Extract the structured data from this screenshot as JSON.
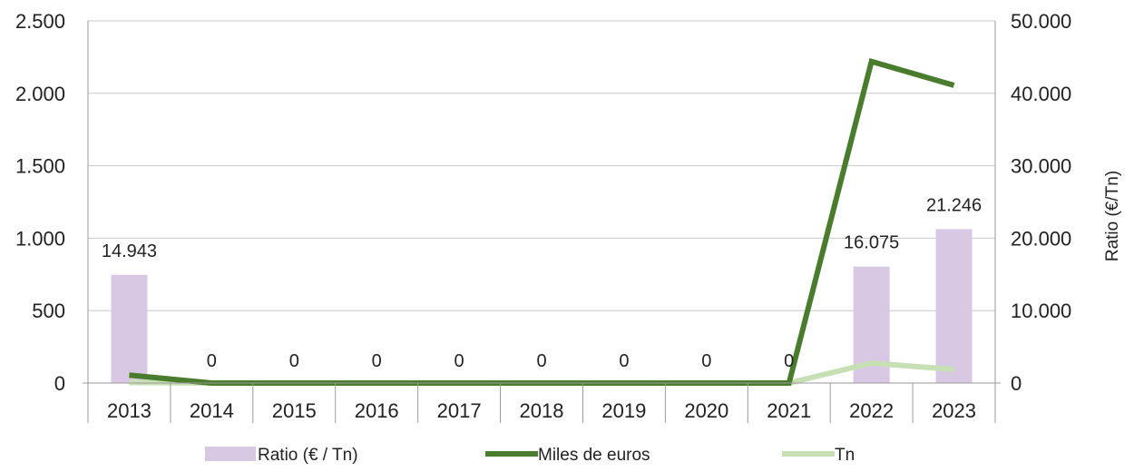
{
  "chart_data": {
    "type": "bar+line",
    "categories": [
      "2013",
      "2014",
      "2015",
      "2016",
      "2017",
      "2018",
      "2019",
      "2020",
      "2021",
      "2022",
      "2023"
    ],
    "y_left": {
      "ylim": [
        0,
        2500
      ],
      "ticks": [
        "0",
        "500",
        "1.000",
        "1.500",
        "2.000",
        "2.500"
      ],
      "tick_values": [
        0,
        500,
        1000,
        1500,
        2000,
        2500
      ]
    },
    "y_right": {
      "ylim": [
        0,
        50000
      ],
      "ticks": [
        "0",
        "10.000",
        "20.000",
        "30.000",
        "40.000",
        "50.000"
      ],
      "tick_values": [
        0,
        10000,
        20000,
        30000,
        40000,
        50000
      ],
      "label": "Ratio (€/Tn)"
    },
    "series": [
      {
        "name": "Ratio (€ / Tn)",
        "kind": "bar",
        "axis": "right",
        "color": "#d9c8e4",
        "values": [
          14943,
          0,
          0,
          0,
          0,
          0,
          0,
          0,
          0,
          16075,
          21246
        ],
        "labels": [
          "14.943",
          "0",
          "0",
          "0",
          "0",
          "0",
          "0",
          "0",
          "0",
          "16.075",
          "21.246"
        ]
      },
      {
        "name": "Miles de euros",
        "kind": "line",
        "axis": "left",
        "color": "#4a7c2e",
        "values": [
          55,
          0,
          0,
          0,
          0,
          0,
          0,
          0,
          0,
          2220,
          2055
        ]
      },
      {
        "name": "Tn",
        "kind": "line",
        "axis": "left",
        "color": "#c6e0b4",
        "values": [
          4,
          0,
          0,
          0,
          0,
          0,
          0,
          0,
          0,
          138,
          94
        ]
      }
    ],
    "grid": true,
    "legend_position": "bottom"
  }
}
